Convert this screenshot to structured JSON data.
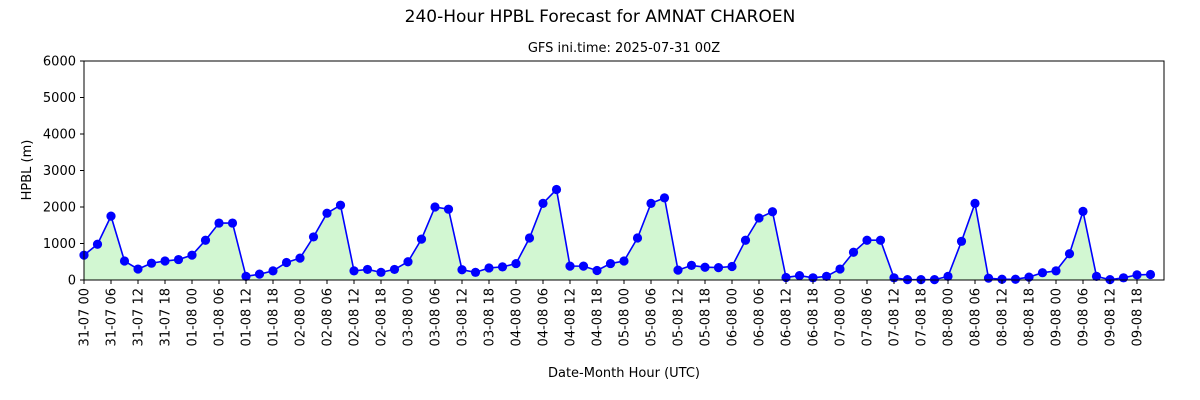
{
  "chart_data": {
    "type": "area",
    "title": "240-Hour HPBL Forecast for AMNAT CHAROEN",
    "subtitle": "GFS ini.time: 2025-07-31 00Z",
    "xlabel": "Date-Month Hour (UTC)",
    "ylabel": "HPBL (m)",
    "ylim": [
      0,
      6000
    ],
    "yticks": [
      0,
      1000,
      2000,
      3000,
      4000,
      5000,
      6000
    ],
    "xticks": [
      "31-07 00",
      "31-07 06",
      "31-07 12",
      "31-07 18",
      "01-08 00",
      "01-08 06",
      "01-08 12",
      "01-08 18",
      "02-08 00",
      "02-08 06",
      "02-08 12",
      "02-08 18",
      "03-08 00",
      "03-08 06",
      "03-08 12",
      "03-08 18",
      "04-08 00",
      "04-08 06",
      "04-08 12",
      "04-08 18",
      "05-08 00",
      "05-08 06",
      "05-08 12",
      "05-08 18",
      "06-08 00",
      "06-08 06",
      "06-08 12",
      "06-08 18",
      "07-08 00",
      "07-08 06",
      "07-08 12",
      "07-08 18",
      "08-08 00",
      "08-08 06",
      "08-08 12",
      "08-08 18",
      "09-08 00",
      "09-08 06",
      "09-08 12",
      "09-08 18"
    ],
    "x_step_hours": 3,
    "x_max_hours": 240,
    "grid": false,
    "line_color": "#0000ff",
    "marker_color": "#0000ff",
    "fill_color": "#d2f7d2",
    "values": [
      680,
      980,
      1750,
      520,
      300,
      460,
      520,
      560,
      680,
      1090,
      1560,
      1560,
      100,
      160,
      250,
      480,
      600,
      1180,
      1830,
      2050,
      250,
      290,
      210,
      290,
      500,
      1120,
      2000,
      1940,
      280,
      210,
      330,
      360,
      450,
      1150,
      2100,
      2480,
      380,
      380,
      260,
      450,
      520,
      1150,
      2100,
      2250,
      270,
      400,
      350,
      340,
      370,
      1090,
      1700,
      1870,
      70,
      120,
      60,
      100,
      300,
      760,
      1090,
      1090,
      60,
      10,
      10,
      10,
      100,
      1060,
      2100,
      50,
      20,
      20,
      80,
      200,
      250,
      720,
      1880,
      100,
      10,
      60,
      140,
      150
    ]
  }
}
